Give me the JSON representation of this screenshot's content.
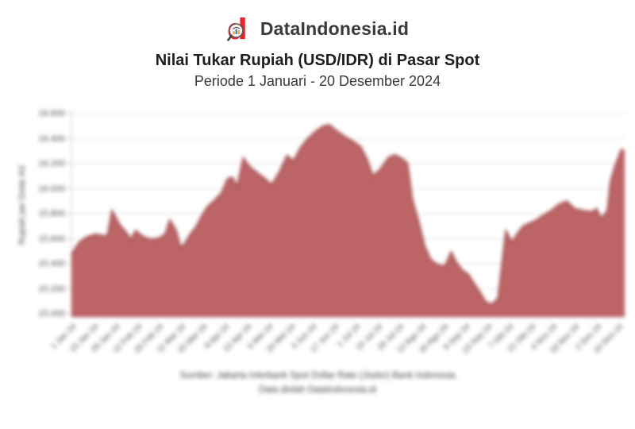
{
  "brand": {
    "name": "DataIndonesia.id"
  },
  "header": {
    "title": "Nilai Tukar Rupiah (USD/IDR) di Pasar Spot",
    "subtitle": "Periode 1 Januari - 20 Desember 2024"
  },
  "chart_data": {
    "type": "area",
    "title": "Nilai Tukar Rupiah (USD/IDR) di Pasar Spot",
    "xlabel": "",
    "ylabel": "Rupiah per Dolar AS",
    "ylim": [
      15000,
      16600
    ],
    "ytick_step": 200,
    "ytick_labels": [
      "15.000",
      "15.200",
      "15.400",
      "15.600",
      "15.800",
      "16.000",
      "16.200",
      "16.400",
      "16.600"
    ],
    "x_unit": "day of year 2024",
    "x_range": [
      1,
      355
    ],
    "grid": true,
    "legend": false,
    "fill_color": "#bc6466",
    "line_color": "#a14e4f",
    "grid_color": "#e8e8e8",
    "axis_color": "#cccccc",
    "blurred": true,
    "xtick_labels": [
      {
        "d": 1,
        "label": "1 Jan 24"
      },
      {
        "d": 15,
        "label": "15 Jan 24"
      },
      {
        "d": 29,
        "label": "29 Jan 24"
      },
      {
        "d": 43,
        "label": "12 Feb 24"
      },
      {
        "d": 57,
        "label": "26 Feb 24"
      },
      {
        "d": 71,
        "label": "11 Mar 24"
      },
      {
        "d": 85,
        "label": "25 Mar 24"
      },
      {
        "d": 99,
        "label": "8 Apr 24"
      },
      {
        "d": 113,
        "label": "22 Apr 24"
      },
      {
        "d": 127,
        "label": "6 Mei 24"
      },
      {
        "d": 141,
        "label": "20 Mei 24"
      },
      {
        "d": 155,
        "label": "3 Jun 24"
      },
      {
        "d": 169,
        "label": "17 Jun 24"
      },
      {
        "d": 183,
        "label": "1 Jul 24"
      },
      {
        "d": 197,
        "label": "15 Jul 24"
      },
      {
        "d": 211,
        "label": "29 Jul 24"
      },
      {
        "d": 225,
        "label": "12 Agu 24"
      },
      {
        "d": 239,
        "label": "26 Agu 24"
      },
      {
        "d": 253,
        "label": "9 Sep 24"
      },
      {
        "d": 267,
        "label": "23 Sep 24"
      },
      {
        "d": 281,
        "label": "7 Okt 24"
      },
      {
        "d": 295,
        "label": "21 Okt 24"
      },
      {
        "d": 309,
        "label": "4 Nov 24"
      },
      {
        "d": 323,
        "label": "18 Nov 24"
      },
      {
        "d": 337,
        "label": "2 Des 24"
      },
      {
        "d": 351,
        "label": "16 Des 24"
      }
    ],
    "points": [
      [
        1,
        15475
      ],
      [
        6,
        15570
      ],
      [
        11,
        15615
      ],
      [
        16,
        15635
      ],
      [
        24,
        15620
      ],
      [
        27,
        15825
      ],
      [
        32,
        15710
      ],
      [
        37,
        15635
      ],
      [
        39,
        15590
      ],
      [
        42,
        15665
      ],
      [
        47,
        15615
      ],
      [
        52,
        15595
      ],
      [
        57,
        15605
      ],
      [
        61,
        15635
      ],
      [
        64,
        15750
      ],
      [
        68,
        15665
      ],
      [
        71,
        15525
      ],
      [
        74,
        15570
      ],
      [
        77,
        15635
      ],
      [
        81,
        15700
      ],
      [
        85,
        15795
      ],
      [
        88,
        15855
      ],
      [
        92,
        15900
      ],
      [
        97,
        15965
      ],
      [
        101,
        16080
      ],
      [
        104,
        16090
      ],
      [
        107,
        16015
      ],
      [
        111,
        16245
      ],
      [
        115,
        16175
      ],
      [
        120,
        16125
      ],
      [
        125,
        16080
      ],
      [
        129,
        16030
      ],
      [
        134,
        16130
      ],
      [
        139,
        16265
      ],
      [
        143,
        16220
      ],
      [
        148,
        16335
      ],
      [
        153,
        16410
      ],
      [
        158,
        16465
      ],
      [
        162,
        16500
      ],
      [
        166,
        16510
      ],
      [
        171,
        16460
      ],
      [
        176,
        16415
      ],
      [
        181,
        16380
      ],
      [
        186,
        16335
      ],
      [
        190,
        16240
      ],
      [
        194,
        16100
      ],
      [
        199,
        16160
      ],
      [
        204,
        16250
      ],
      [
        208,
        16270
      ],
      [
        212,
        16245
      ],
      [
        216,
        16205
      ],
      [
        219,
        15920
      ],
      [
        223,
        15745
      ],
      [
        227,
        15540
      ],
      [
        231,
        15430
      ],
      [
        235,
        15395
      ],
      [
        240,
        15380
      ],
      [
        244,
        15495
      ],
      [
        247,
        15415
      ],
      [
        251,
        15350
      ],
      [
        255,
        15315
      ],
      [
        258,
        15255
      ],
      [
        263,
        15160
      ],
      [
        266,
        15095
      ],
      [
        270,
        15075
      ],
      [
        274,
        15125
      ],
      [
        277,
        15445
      ],
      [
        279,
        15665
      ],
      [
        283,
        15570
      ],
      [
        286,
        15635
      ],
      [
        290,
        15700
      ],
      [
        295,
        15730
      ],
      [
        298,
        15745
      ],
      [
        302,
        15780
      ],
      [
        308,
        15825
      ],
      [
        313,
        15875
      ],
      [
        318,
        15900
      ],
      [
        323,
        15840
      ],
      [
        328,
        15825
      ],
      [
        334,
        15815
      ],
      [
        337,
        15840
      ],
      [
        340,
        15760
      ],
      [
        344,
        15825
      ],
      [
        346,
        16060
      ],
      [
        349,
        16185
      ],
      [
        353,
        16315
      ],
      [
        355,
        16290
      ]
    ]
  },
  "footer": {
    "source_line1": "Sumber: Jakarta Interbank Spot Dollar Rate (Jisdor) Bank Indonesia",
    "source_line2": "Data diolah DataIndonesia.id"
  },
  "logo": {
    "red": "#e5252c",
    "lens_ring": "#5a5a5a",
    "bar1": "#f0a030",
    "bar2": "#3f7fc1"
  }
}
